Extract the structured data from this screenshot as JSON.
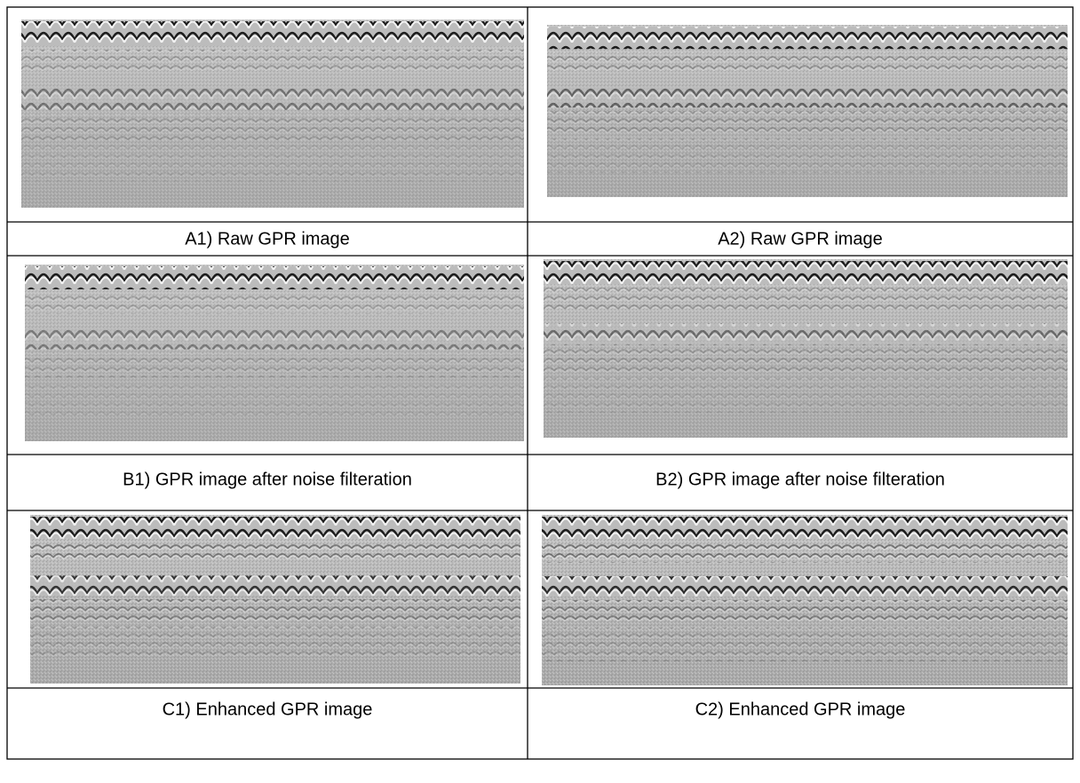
{
  "table": {
    "rows": [
      [
        "A1) Raw GPR image",
        "A2) Raw GPR image"
      ],
      [
        "B1) GPR image after noise filteration",
        "B2) GPR image after noise filteration"
      ],
      [
        "C1) Enhanced GPR image",
        "C2) Enhanced GPR image"
      ]
    ]
  }
}
